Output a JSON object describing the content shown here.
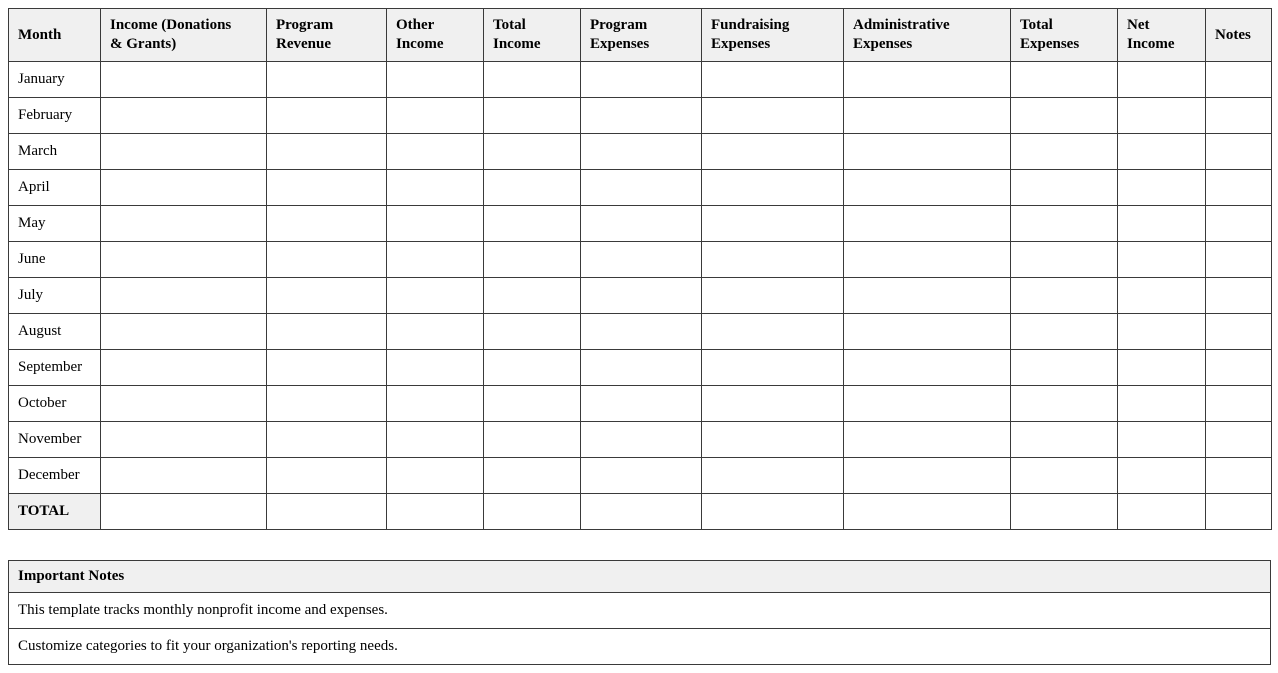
{
  "colors": {
    "page_bg": "#ffffff",
    "text": "#000000",
    "border": "#3a3a3a",
    "header_bg": "#f0f0f0"
  },
  "main_table": {
    "columns": [
      {
        "name": "month",
        "label": "Month",
        "lines": [
          "Month"
        ]
      },
      {
        "name": "income-donations-grants",
        "label": "Income (Donations & Grants)",
        "lines": [
          "Income (Donations",
          "& Grants)"
        ]
      },
      {
        "name": "program-revenue",
        "label": "Program Revenue",
        "lines": [
          "Program",
          "Revenue"
        ]
      },
      {
        "name": "other-income",
        "label": "Other Income",
        "lines": [
          "Other",
          "Income"
        ]
      },
      {
        "name": "total-income",
        "label": "Total Income",
        "lines": [
          "Total",
          "Income"
        ]
      },
      {
        "name": "program-expenses",
        "label": "Program Expenses",
        "lines": [
          "Program",
          "Expenses"
        ]
      },
      {
        "name": "fundraising-expenses",
        "label": "Fundraising Expenses",
        "lines": [
          "Fundraising",
          "Expenses"
        ]
      },
      {
        "name": "administrative-expenses",
        "label": "Administrative Expenses",
        "lines": [
          "Administrative",
          "Expenses"
        ]
      },
      {
        "name": "total-expenses",
        "label": "Total Expenses",
        "lines": [
          "Total",
          "Expenses"
        ]
      },
      {
        "name": "net-income",
        "label": "Net Income",
        "lines": [
          "Net",
          "Income"
        ]
      },
      {
        "name": "notes",
        "label": "Notes",
        "lines": [
          "Notes"
        ]
      }
    ],
    "row_labels": [
      "January",
      "February",
      "March",
      "April",
      "May",
      "June",
      "July",
      "August",
      "September",
      "October",
      "November",
      "December"
    ],
    "total_label": "TOTAL",
    "empty_cell_value": ""
  },
  "notes_table": {
    "title": "Important Notes",
    "rows": [
      "This template tracks monthly nonprofit income and expenses.",
      "Customize categories to fit your organization's reporting needs."
    ]
  }
}
